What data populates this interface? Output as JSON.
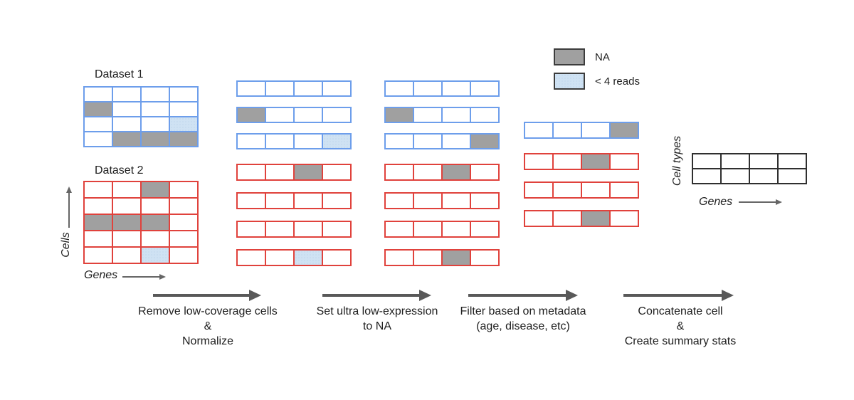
{
  "labels": {
    "dataset1": "Dataset 1",
    "dataset2": "Dataset 2",
    "cells_axis": "Cells",
    "genes_axis": "Genes",
    "cell_types_axis": "Cell types",
    "genes_axis_right": "Genes"
  },
  "legend": {
    "items": [
      {
        "label": "NA",
        "kind": "na"
      },
      {
        "label": "< 4 reads",
        "kind": "low_reads"
      }
    ]
  },
  "colors": {
    "blue_border": "#6d9eeb",
    "red_border": "#e0423c",
    "black_border": "#2f2f2f",
    "na_fill": "#a0a0a0",
    "low_reads_fill": "#cfe2f3",
    "low_reads_dot": "#b7cfe9",
    "step_arrow": "#595959",
    "axis_arrow": "#666666"
  },
  "steps": [
    {
      "lines": [
        "Remove low-coverage cells",
        "&",
        "Normalize"
      ]
    },
    {
      "lines": [
        "Set ultra low-expression",
        "to NA"
      ]
    },
    {
      "lines": [
        "Filter based on metadata",
        "(age, disease, etc)"
      ]
    },
    {
      "lines": [
        "Concatenate cell",
        "&",
        "Create summary stats"
      ]
    }
  ],
  "grids": {
    "dataset1": {
      "border": "blue",
      "layout": "solid",
      "rows": [
        [
          "W",
          "W",
          "W",
          "W"
        ],
        [
          "NA",
          "W",
          "W",
          "W"
        ],
        [
          "W",
          "W",
          "W",
          "LOW"
        ],
        [
          "W",
          "NA",
          "NA",
          "NA"
        ]
      ]
    },
    "dataset2": {
      "border": "red",
      "layout": "solid",
      "rows": [
        [
          "W",
          "W",
          "NA",
          "W"
        ],
        [
          "W",
          "W",
          "W",
          "W"
        ],
        [
          "NA",
          "NA",
          "NA",
          "W"
        ],
        [
          "W",
          "W",
          "W",
          "W"
        ],
        [
          "W",
          "W",
          "LOW",
          "W"
        ]
      ]
    },
    "stage2_blue": {
      "border": "blue",
      "layout": "gapped",
      "rows": [
        [
          "W",
          "W",
          "W",
          "W"
        ],
        [
          "NA",
          "W",
          "W",
          "W"
        ],
        [
          "W",
          "W",
          "W",
          "LOW"
        ]
      ]
    },
    "stage2_red": {
      "border": "red",
      "layout": "gapped",
      "rows": [
        [
          "W",
          "W",
          "NA",
          "W"
        ],
        [
          "W",
          "W",
          "W",
          "W"
        ],
        [
          "W",
          "W",
          "W",
          "W"
        ],
        [
          "W",
          "W",
          "LOW",
          "W"
        ]
      ]
    },
    "stage3_blue": {
      "border": "blue",
      "layout": "gapped",
      "rows": [
        [
          "W",
          "W",
          "W",
          "W"
        ],
        [
          "NA",
          "W",
          "W",
          "W"
        ],
        [
          "W",
          "W",
          "W",
          "NA"
        ]
      ]
    },
    "stage3_red": {
      "border": "red",
      "layout": "gapped",
      "rows": [
        [
          "W",
          "W",
          "NA",
          "W"
        ],
        [
          "W",
          "W",
          "W",
          "W"
        ],
        [
          "W",
          "W",
          "W",
          "W"
        ],
        [
          "W",
          "W",
          "NA",
          "W"
        ]
      ]
    },
    "stage4_blue": {
      "border": "blue",
      "layout": "gapped",
      "rows": [
        [
          "W",
          "W",
          "W",
          "NA"
        ]
      ]
    },
    "stage4_red": {
      "border": "red",
      "layout": "gapped",
      "rows": [
        [
          "W",
          "W",
          "NA",
          "W"
        ],
        [
          "W",
          "W",
          "W",
          "W"
        ],
        [
          "W",
          "W",
          "NA",
          "W"
        ]
      ]
    },
    "summary": {
      "border": "black",
      "layout": "solid",
      "rows": [
        [
          "W",
          "W",
          "W",
          "W"
        ],
        [
          "W",
          "W",
          "W",
          "W"
        ]
      ]
    }
  }
}
